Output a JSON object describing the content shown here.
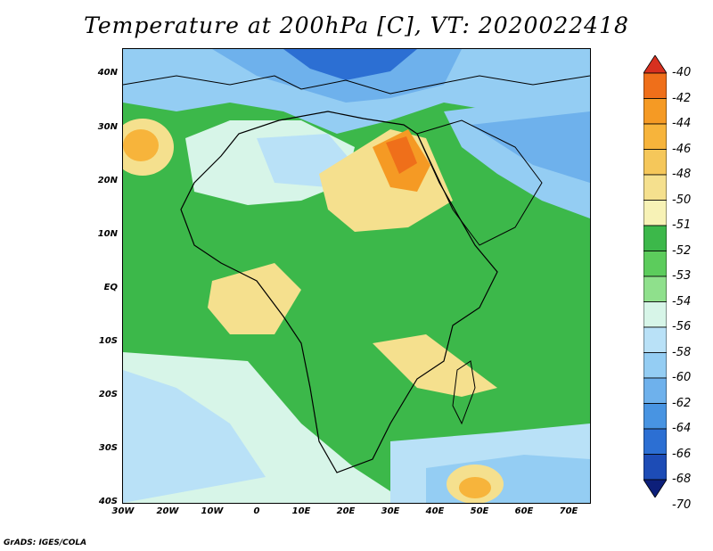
{
  "title": "Temperature at 200hPa [C], VT: 2020022418",
  "footer": "GrADS: IGES/COLA",
  "lat_labels": [
    "40N",
    "30N",
    "20N",
    "10N",
    "EQ",
    "10S",
    "20S",
    "30S",
    "40S"
  ],
  "lon_labels": [
    "30W",
    "20W",
    "10W",
    "0",
    "10E",
    "20E",
    "30E",
    "40E",
    "50E",
    "60E",
    "70E"
  ],
  "colorbar": {
    "labels": [
      "-40",
      "-42",
      "-44",
      "-46",
      "-48",
      "-50",
      "-51",
      "-52",
      "-53",
      "-54",
      "-56",
      "-58",
      "-60",
      "-62",
      "-64",
      "-66",
      "-68",
      "-70"
    ],
    "colors": [
      "#d7301f",
      "#ef6f1a",
      "#f59a24",
      "#f7b43b",
      "#f5c75a",
      "#f5e08e",
      "#f7f2b6",
      "#3cb84a",
      "#5ccc5c",
      "#8fe08c",
      "#d7f5e8",
      "#b9e1f7",
      "#94cdf3",
      "#6eb1ec",
      "#4894e2",
      "#2c6fd3",
      "#1d4cb6",
      "#0d1f7a"
    ]
  },
  "map": {
    "region": "Africa",
    "lon_range": [
      -30,
      75
    ],
    "lat_range": [
      -40,
      45
    ]
  }
}
